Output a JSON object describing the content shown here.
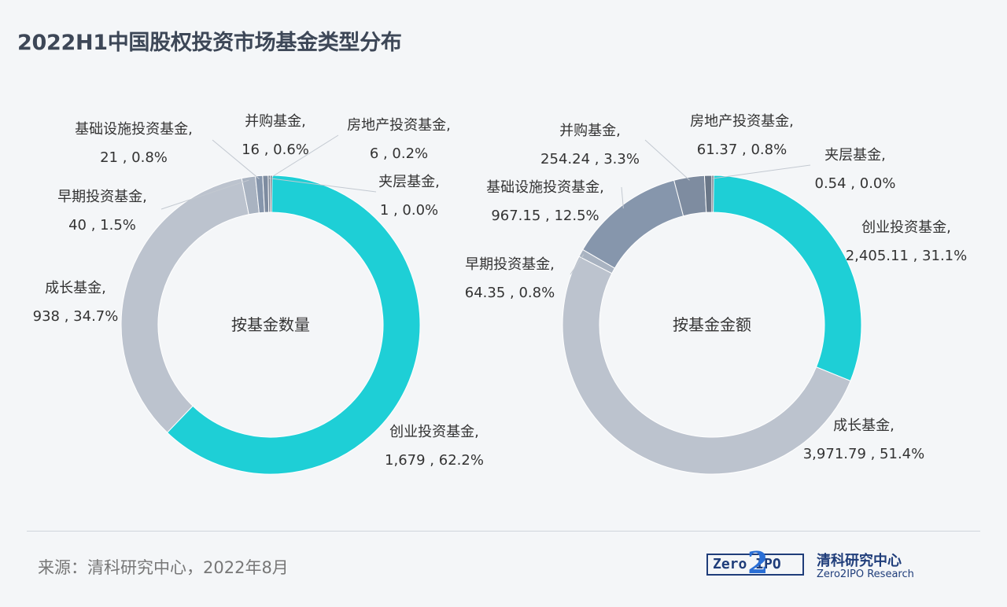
{
  "title": "2022H1中国股权投资市场基金类型分布",
  "source": "来源：清科研究中心，2022年8月",
  "logo": {
    "box_text": "Zero  IPO",
    "two": "2",
    "cn": "清科研究中心",
    "en": "Zero2IPO Research"
  },
  "colors": {
    "创业投资基金": "#1ecfd6",
    "成长基金": "#bcc3ce",
    "早期投资基金": "#a9b3c1",
    "基础设施投资基金": "#8696ac",
    "并购基金": "#7e8ca0",
    "房地产投资基金": "#6a7788",
    "夹层基金": "#4f5a69"
  },
  "chart_data": [
    {
      "type": "pie",
      "center_label": "按基金数量",
      "slices": [
        {
          "name": "创业投资基金",
          "value": 1679,
          "value_text": "1,679",
          "pct": "62.2%"
        },
        {
          "name": "成长基金",
          "value": 938,
          "value_text": "938",
          "pct": "34.7%"
        },
        {
          "name": "早期投资基金",
          "value": 40,
          "value_text": "40",
          "pct": "1.5%"
        },
        {
          "name": "基础设施投资基金",
          "value": 21,
          "value_text": "21",
          "pct": "0.8%"
        },
        {
          "name": "并购基金",
          "value": 16,
          "value_text": "16",
          "pct": "0.6%"
        },
        {
          "name": "房地产投资基金",
          "value": 6,
          "value_text": "6",
          "pct": "0.2%"
        },
        {
          "name": "夹层基金",
          "value": 1,
          "value_text": "1",
          "pct": "0.0%"
        }
      ]
    },
    {
      "type": "pie",
      "center_label": "按基金金额",
      "slices": [
        {
          "name": "创业投资基金",
          "value": 2405.11,
          "value_text": "2,405.11",
          "pct": "31.1%"
        },
        {
          "name": "成长基金",
          "value": 3971.79,
          "value_text": "3,971.79",
          "pct": "51.4%"
        },
        {
          "name": "早期投资基金",
          "value": 64.35,
          "value_text": "64.35",
          "pct": "0.8%"
        },
        {
          "name": "基础设施投资基金",
          "value": 967.15,
          "value_text": "967.15",
          "pct": "12.5%"
        },
        {
          "name": "并购基金",
          "value": 254.24,
          "value_text": "254.24",
          "pct": "3.3%"
        },
        {
          "name": "房地产投资基金",
          "value": 61.37,
          "value_text": "61.37",
          "pct": "0.8%"
        },
        {
          "name": "夹层基金",
          "value": 0.54,
          "value_text": "0.54",
          "pct": "0.0%"
        }
      ]
    }
  ]
}
